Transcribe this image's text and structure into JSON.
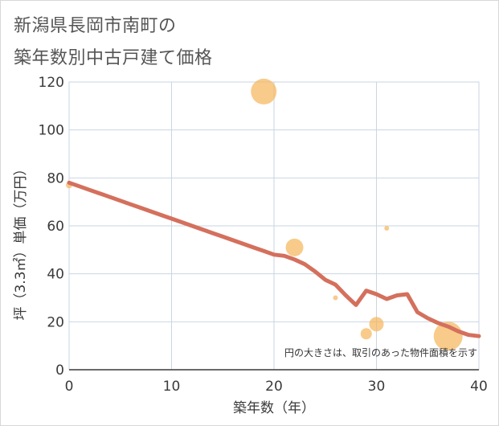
{
  "title": {
    "line1": "新潟県長岡市南町の",
    "line2": "築年数別中古戸建て価格"
  },
  "chart_data": {
    "type": "scatter",
    "xlabel": "築年数（年）",
    "ylabel": "坪（3.3㎡）単価（万円）",
    "xlim": [
      0,
      40
    ],
    "ylim": [
      0,
      120
    ],
    "xticks": [
      "0",
      "10",
      "20",
      "30",
      "40"
    ],
    "yticks": [
      "0",
      "20",
      "40",
      "60",
      "80",
      "100",
      "120"
    ],
    "grid": true,
    "annotation": "円の大きさは、取引のあった物件面積を示す",
    "colors": {
      "bubble": "#f5b55a",
      "trend": "#d4705d",
      "grid": "#c9d6e3"
    },
    "bubbles": [
      {
        "x": 0,
        "y": 77,
        "size": 4
      },
      {
        "x": 19,
        "y": 116,
        "size": 16
      },
      {
        "x": 22,
        "y": 51,
        "size": 11
      },
      {
        "x": 26,
        "y": 30,
        "size": 3
      },
      {
        "x": 29,
        "y": 15,
        "size": 7
      },
      {
        "x": 30,
        "y": 19,
        "size": 9
      },
      {
        "x": 31,
        "y": 59,
        "size": 3
      },
      {
        "x": 37,
        "y": 14,
        "size": 18
      }
    ],
    "trend": {
      "x": [
        0,
        1,
        2,
        3,
        4,
        5,
        6,
        7,
        8,
        9,
        10,
        11,
        12,
        13,
        14,
        15,
        16,
        17,
        18,
        19,
        20,
        21,
        22,
        23,
        24,
        25,
        26,
        27,
        28,
        29,
        30,
        31,
        32,
        33,
        34,
        35,
        36,
        37,
        38,
        39,
        40
      ],
      "y": [
        78,
        76.5,
        75,
        73.5,
        72,
        70.5,
        69,
        67.5,
        66,
        64.5,
        63,
        61.5,
        60,
        58.5,
        57,
        55.5,
        54,
        52.5,
        51,
        49.5,
        48,
        47.5,
        46,
        44,
        41,
        37.5,
        35.5,
        31,
        27,
        33,
        31.5,
        29.5,
        31,
        31.5,
        24,
        21.5,
        19.5,
        18,
        16,
        14.5,
        14
      ]
    }
  }
}
